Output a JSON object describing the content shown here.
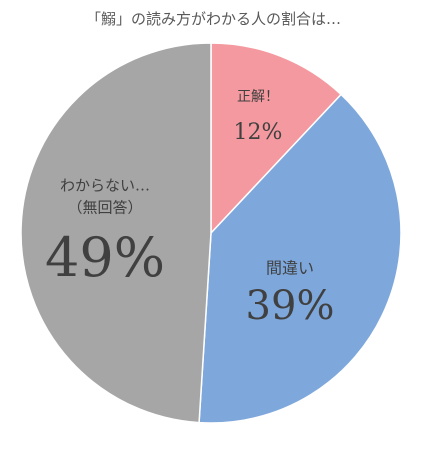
{
  "chart_data": {
    "type": "pie",
    "title": "「鰯」の読み方がわかる人の割合は…",
    "categories": [
      "正解！",
      "間違い",
      "わからない…\n（無回答）"
    ],
    "values": [
      12,
      39,
      49
    ],
    "value_labels": [
      "12%",
      "39%",
      "49%"
    ],
    "colors": [
      "#f4999f",
      "#7ea8dc",
      "#a6a6a6"
    ]
  }
}
